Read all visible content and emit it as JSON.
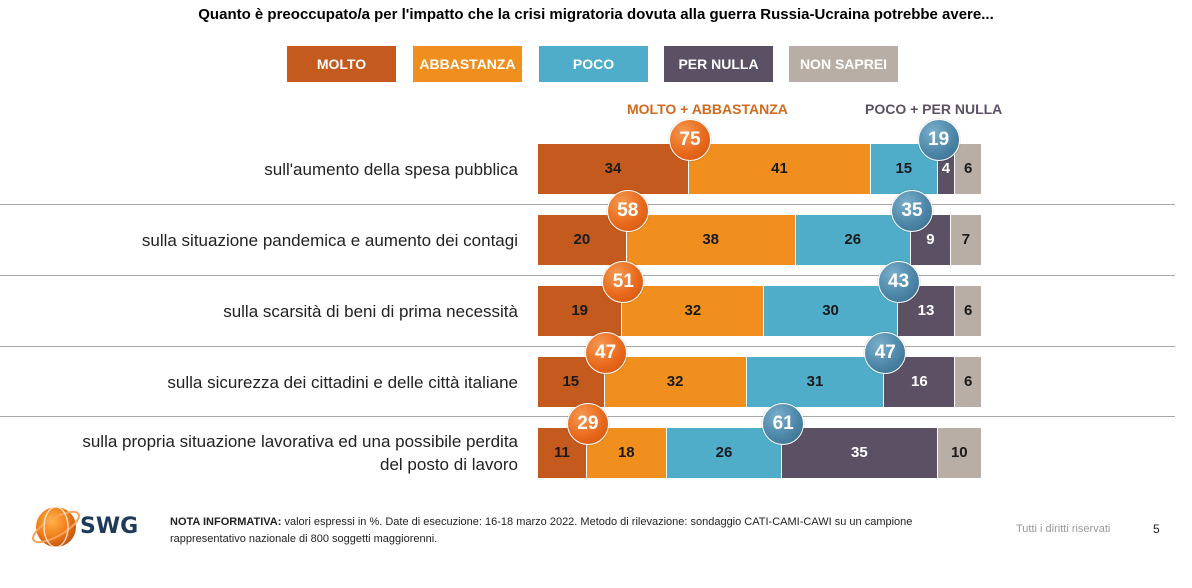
{
  "title": "Quanto è preoccupato/a per l'impatto che la crisi migratoria dovuta alla guerra Russia-Ucraina potrebbe avere...",
  "legend": [
    {
      "label": "MOLTO",
      "color": "#c55a1e"
    },
    {
      "label": "ABBASTANZA",
      "color": "#f08f1e"
    },
    {
      "label": "POCO",
      "color": "#4fadc9"
    },
    {
      "label": "PER NULLA",
      "color": "#5c5164"
    },
    {
      "label": "NON SAPREI",
      "color": "#b9aea5"
    }
  ],
  "group_labels": {
    "positive": "MOLTO + ABBASTANZA",
    "negative": "POCO + PER NULLA"
  },
  "chart_data": {
    "type": "bar",
    "orientation": "horizontal-stacked",
    "categories": [
      "sull'aumento della spesa pubblica",
      "sulla situazione pandemica e aumento dei contagi",
      "sulla scarsità di beni di prima necessità",
      "sulla sicurezza dei cittadini e delle città italiane",
      "sulla propria situazione lavorativa ed una possibile perdita del posto di lavoro"
    ],
    "series": [
      {
        "name": "MOLTO",
        "values": [
          34,
          20,
          19,
          15,
          11
        ]
      },
      {
        "name": "ABBASTANZA",
        "values": [
          41,
          38,
          32,
          32,
          18
        ]
      },
      {
        "name": "POCO",
        "values": [
          15,
          26,
          30,
          31,
          26
        ]
      },
      {
        "name": "PER NULLA",
        "values": [
          4,
          9,
          13,
          16,
          35
        ]
      },
      {
        "name": "NON SAPREI",
        "values": [
          6,
          7,
          6,
          6,
          10
        ]
      }
    ],
    "totals": {
      "MOLTO + ABBASTANZA": [
        75,
        58,
        51,
        47,
        29
      ],
      "POCO + PER NULLA": [
        19,
        35,
        43,
        47,
        61
      ]
    },
    "unit": "%"
  },
  "footer": {
    "note_label": "NOTA INFORMATIVA:",
    "note_text": "valori espressi in %. Date di esecuzione: 16-18 marzo 2022. Metodo di rilevazione: sondaggio CATI-CAMI-CAWI su un campione rappresentativo nazionale di 800 soggetti maggiorenni.",
    "rights": "Tutti i diritti riservati",
    "page": "5",
    "logo_text": "SWG"
  }
}
